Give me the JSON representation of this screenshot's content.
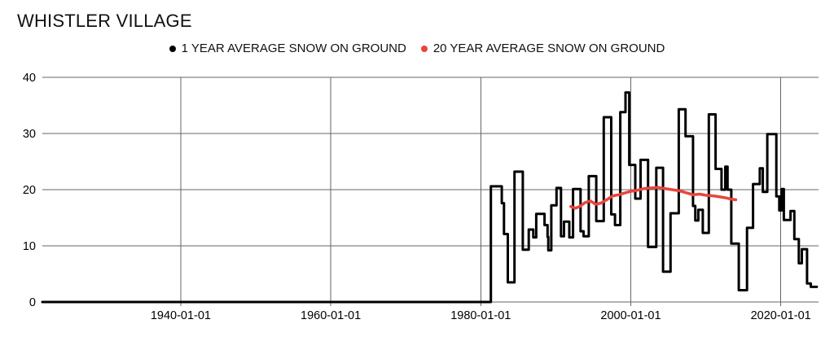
{
  "title": "WHISTLER VILLAGE",
  "legend": {
    "items": [
      {
        "label": "1 YEAR AVERAGE SNOW ON GROUND",
        "color": "#000000"
      },
      {
        "label": "20 YEAR AVERAGE SNOW ON GROUND",
        "color": "#e8453c"
      }
    ]
  },
  "colors": {
    "gridline": "#666666",
    "tick_text": "#000000",
    "background": "#ffffff"
  },
  "chart_data": {
    "type": "line",
    "title": "WHISTLER VILLAGE",
    "xlabel": "",
    "ylabel": "",
    "grid": true,
    "legend_position": "top-center",
    "x_axis": {
      "range_years": [
        1921.55,
        2025.03
      ],
      "ticks": [
        {
          "label": "1940-01-01",
          "year": 1940
        },
        {
          "label": "1960-01-01",
          "year": 1960
        },
        {
          "label": "1980-01-01",
          "year": 1980
        },
        {
          "label": "2000-01-01",
          "year": 2000
        },
        {
          "label": "2020-01-01",
          "year": 2020
        }
      ]
    },
    "y_axis": {
      "range": [
        0,
        40
      ],
      "ticks": [
        0,
        10,
        20,
        30,
        40
      ]
    },
    "series": [
      {
        "name": "1 YEAR AVERAGE SNOW ON GROUND",
        "color": "#000000",
        "style": "step",
        "width": 3,
        "points": [
          [
            1921.55,
            0
          ],
          [
            1981.35,
            20.6
          ],
          [
            1982.8,
            17.6
          ],
          [
            1983.1,
            12.1
          ],
          [
            1983.6,
            3.5
          ],
          [
            1984.5,
            23.2
          ],
          [
            1985.6,
            9.3
          ],
          [
            1986.4,
            12.9
          ],
          [
            1987.0,
            11.5
          ],
          [
            1987.4,
            15.7
          ],
          [
            1988.5,
            13.7
          ],
          [
            1988.9,
            11.6
          ],
          [
            1989.0,
            9.2
          ],
          [
            1989.4,
            17.2
          ],
          [
            1990.1,
            20.3
          ],
          [
            1990.7,
            11.7
          ],
          [
            1991.1,
            14.3
          ],
          [
            1991.8,
            11.5
          ],
          [
            1992.3,
            20.1
          ],
          [
            1993.3,
            12.6
          ],
          [
            1993.7,
            11.7
          ],
          [
            1994.4,
            22.4
          ],
          [
            1995.4,
            14.4
          ],
          [
            1996.4,
            32.9
          ],
          [
            1997.4,
            15.6
          ],
          [
            1997.9,
            13.7
          ],
          [
            1998.6,
            33.8
          ],
          [
            1999.3,
            37.3
          ],
          [
            1999.8,
            24.4
          ],
          [
            2000.6,
            18.4
          ],
          [
            2001.3,
            25.3
          ],
          [
            2002.3,
            9.8
          ],
          [
            2003.4,
            23.9
          ],
          [
            2004.3,
            5.4
          ],
          [
            2005.3,
            15.8
          ],
          [
            2006.4,
            34.3
          ],
          [
            2007.3,
            29.5
          ],
          [
            2008.3,
            17.1
          ],
          [
            2008.6,
            14.5
          ],
          [
            2009.0,
            16.4
          ],
          [
            2009.6,
            12.3
          ],
          [
            2010.4,
            33.4
          ],
          [
            2011.3,
            23.7
          ],
          [
            2012.1,
            20.0
          ],
          [
            2012.6,
            24.1
          ],
          [
            2012.9,
            20.0
          ],
          [
            2013.4,
            10.4
          ],
          [
            2014.4,
            2.1
          ],
          [
            2015.5,
            13.2
          ],
          [
            2016.3,
            21.0
          ],
          [
            2017.2,
            23.8
          ],
          [
            2017.6,
            19.6
          ],
          [
            2018.2,
            29.9
          ],
          [
            2019.4,
            18.8
          ],
          [
            2019.8,
            16.3
          ],
          [
            2020.1,
            20.1
          ],
          [
            2020.4,
            14.6
          ],
          [
            2021.3,
            16.2
          ],
          [
            2021.8,
            11.2
          ],
          [
            2022.4,
            6.9
          ],
          [
            2022.8,
            9.4
          ],
          [
            2023.5,
            3.3
          ],
          [
            2024.0,
            2.7
          ],
          [
            2024.8,
            2.7
          ]
        ]
      },
      {
        "name": "20 YEAR AVERAGE SNOW ON GROUND",
        "color": "#e8453c",
        "style": "line",
        "width": 3.5,
        "points": [
          [
            1992.0,
            17.0
          ],
          [
            1992.6,
            16.7
          ],
          [
            1993.2,
            17.0
          ],
          [
            1993.9,
            17.7
          ],
          [
            1994.6,
            18.0
          ],
          [
            1995.3,
            17.4
          ],
          [
            1996.0,
            17.6
          ],
          [
            1996.8,
            18.2
          ],
          [
            1997.6,
            18.9
          ],
          [
            1998.4,
            19.1
          ],
          [
            1999.2,
            19.4
          ],
          [
            2000.0,
            19.7
          ],
          [
            2000.9,
            19.9
          ],
          [
            2001.8,
            20.2
          ],
          [
            2002.7,
            20.3
          ],
          [
            2003.6,
            20.4
          ],
          [
            2004.5,
            20.2
          ],
          [
            2005.5,
            20.0
          ],
          [
            2006.5,
            19.8
          ],
          [
            2007.5,
            19.4
          ],
          [
            2008.3,
            19.1
          ],
          [
            2009.2,
            19.2
          ],
          [
            2010.0,
            19.0
          ],
          [
            2011.0,
            18.9
          ],
          [
            2012.0,
            18.7
          ],
          [
            2012.8,
            18.5
          ],
          [
            2013.4,
            18.3
          ],
          [
            2014.0,
            18.2
          ]
        ]
      }
    ]
  }
}
